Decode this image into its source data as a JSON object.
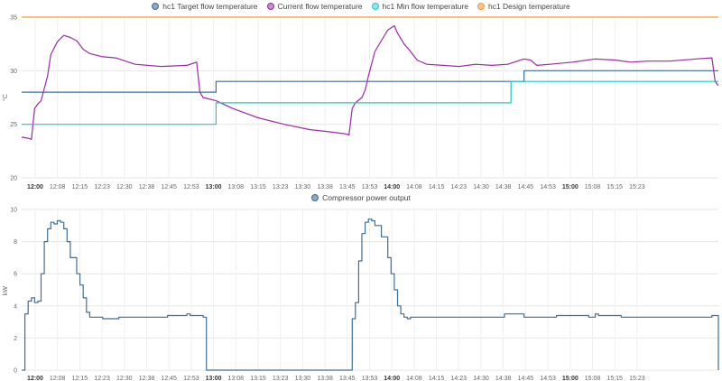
{
  "charts": [
    {
      "legend": [
        {
          "label": "hc1 Target flow temperature",
          "color": "#3f6e96",
          "fill": "#8fa9c4"
        },
        {
          "label": "Current flow temperature",
          "color": "#9a2ba6",
          "fill": "#c98ad0"
        },
        {
          "label": "hc1 Min flow temperature",
          "color": "#1fc9c9",
          "fill": "#8fe4e4"
        },
        {
          "label": "hc1 Design temperature",
          "color": "#f39c34",
          "fill": "#f7c690"
        }
      ],
      "unit": "°C",
      "y_ticks": [
        "20",
        "25",
        "30",
        "35"
      ],
      "x_ticks": [
        {
          "label": "12:00",
          "major": true
        },
        {
          "label": "12:08"
        },
        {
          "label": "12:15"
        },
        {
          "label": "12:23"
        },
        {
          "label": "12:30"
        },
        {
          "label": "12:38"
        },
        {
          "label": "12:45"
        },
        {
          "label": "12:53"
        },
        {
          "label": "13:00",
          "major": true
        },
        {
          "label": "13:08"
        },
        {
          "label": "13:15"
        },
        {
          "label": "13:23"
        },
        {
          "label": "13:30"
        },
        {
          "label": "13:38"
        },
        {
          "label": "13:45"
        },
        {
          "label": "13:53"
        },
        {
          "label": "14:00",
          "major": true
        },
        {
          "label": "14:08"
        },
        {
          "label": "14:15"
        },
        {
          "label": "14:23"
        },
        {
          "label": "14:30"
        },
        {
          "label": "14:38"
        },
        {
          "label": "14:45"
        },
        {
          "label": "14:53"
        },
        {
          "label": "15:00",
          "major": true
        },
        {
          "label": "15:08"
        },
        {
          "label": "15:15"
        },
        {
          "label": "15:23"
        }
      ]
    },
    {
      "legend": [
        {
          "label": "Compressor power output",
          "color": "#3f6e96",
          "fill": "#8fa9c4"
        }
      ],
      "unit": "kW",
      "y_ticks": [
        "0",
        "2",
        "4",
        "6",
        "8",
        "10"
      ],
      "x_ticks": [
        {
          "label": "12:00",
          "major": true
        },
        {
          "label": "12:08"
        },
        {
          "label": "12:15"
        },
        {
          "label": "12:23"
        },
        {
          "label": "12:30"
        },
        {
          "label": "12:38"
        },
        {
          "label": "12:45"
        },
        {
          "label": "12:53"
        },
        {
          "label": "13:00",
          "major": true
        },
        {
          "label": "13:08"
        },
        {
          "label": "13:15"
        },
        {
          "label": "13:23"
        },
        {
          "label": "13:30"
        },
        {
          "label": "13:38"
        },
        {
          "label": "13:45"
        },
        {
          "label": "13:53"
        },
        {
          "label": "14:00",
          "major": true
        },
        {
          "label": "14:08"
        },
        {
          "label": "14:15"
        },
        {
          "label": "14:23"
        },
        {
          "label": "14:30"
        },
        {
          "label": "14:38"
        },
        {
          "label": "14:45"
        },
        {
          "label": "14:53"
        },
        {
          "label": "15:00",
          "major": true
        },
        {
          "label": "15:08"
        },
        {
          "label": "15:15"
        },
        {
          "label": "15:23"
        }
      ]
    }
  ],
  "chart_data": [
    {
      "type": "line",
      "ylabel": "°C",
      "ylim": [
        20,
        35
      ],
      "xlim": [
        "11:55",
        "15:30"
      ],
      "grid": true,
      "legend_position": "top",
      "series": [
        {
          "name": "hc1 Target flow temperature",
          "step": true,
          "x": [
            "11:55",
            "12:55",
            "13:55",
            "14:30",
            "15:30"
          ],
          "values": [
            28,
            29,
            29,
            30,
            30
          ]
        },
        {
          "name": "Current flow temperature",
          "x": [
            "11:55",
            "11:57",
            "11:58",
            "11:59",
            "12:00",
            "12:01",
            "12:03",
            "12:04",
            "12:06",
            "12:08",
            "12:10",
            "12:12",
            "12:14",
            "12:16",
            "12:20",
            "12:24",
            "12:30",
            "12:38",
            "12:46",
            "12:48",
            "12:49",
            "12:50",
            "12:51",
            "12:55",
            "13:00",
            "13:08",
            "13:16",
            "13:24",
            "13:30",
            "13:35",
            "13:36",
            "13:37",
            "13:38",
            "13:40",
            "13:41",
            "13:42",
            "13:44",
            "13:48",
            "13:50",
            "13:51",
            "13:53",
            "13:55",
            "13:57",
            "14:00",
            "14:05",
            "14:10",
            "14:15",
            "14:20",
            "14:25",
            "14:30",
            "14:32",
            "14:34",
            "14:38",
            "14:45",
            "14:52",
            "14:58",
            "15:03",
            "15:08",
            "15:15",
            "15:23",
            "15:28",
            "15:29",
            "15:30"
          ],
          "values": [
            23.8,
            23.7,
            23.6,
            26.5,
            26.9,
            27.2,
            29.5,
            31.5,
            32.7,
            33.3,
            33.1,
            32.8,
            32.0,
            31.6,
            31.3,
            31.2,
            30.6,
            30.4,
            30.5,
            30.7,
            30.8,
            28.0,
            27.5,
            27.2,
            26.5,
            25.6,
            25.0,
            24.5,
            24.3,
            24.1,
            24.0,
            26.5,
            27.0,
            27.5,
            28.2,
            29.5,
            31.8,
            33.8,
            34.2,
            33.5,
            32.5,
            31.8,
            31.0,
            30.6,
            30.5,
            30.4,
            30.6,
            30.5,
            30.6,
            31.1,
            31.0,
            30.5,
            30.6,
            30.8,
            31.1,
            31.0,
            30.8,
            30.9,
            30.9,
            31.1,
            31.2,
            29.0,
            28.6
          ]
        },
        {
          "name": "hc1 Min flow temperature",
          "step": true,
          "x": [
            "11:55",
            "12:55",
            "14:26",
            "15:30"
          ],
          "values": [
            25,
            27,
            29,
            29
          ]
        },
        {
          "name": "hc1 Design temperature",
          "x": [
            "11:55",
            "15:30"
          ],
          "values": [
            35,
            35
          ]
        }
      ]
    },
    {
      "type": "line",
      "ylabel": "kW",
      "ylim": [
        0,
        10
      ],
      "xlim": [
        "11:55",
        "15:30"
      ],
      "grid": true,
      "legend_position": "top",
      "series": [
        {
          "name": "Compressor power output",
          "step": true,
          "x": [
            "11:55",
            "11:56",
            "11:57",
            "11:58",
            "11:59",
            "12:00",
            "12:01",
            "12:02",
            "12:03",
            "12:04",
            "12:05",
            "12:06",
            "12:07",
            "12:08",
            "12:09",
            "12:10",
            "12:12",
            "12:13",
            "12:14",
            "12:15",
            "12:16",
            "12:17",
            "12:18",
            "12:20",
            "12:25",
            "12:30",
            "12:40",
            "12:46",
            "12:47",
            "12:50",
            "12:51",
            "12:52",
            "13:36",
            "13:37",
            "13:38",
            "13:39",
            "13:40",
            "13:41",
            "13:42",
            "13:43",
            "13:44",
            "13:46",
            "13:48",
            "13:49",
            "13:50",
            "13:51",
            "13:52",
            "13:53",
            "13:54",
            "13:55",
            "13:56",
            "14:00",
            "14:10",
            "14:20",
            "14:23",
            "14:24",
            "14:30",
            "14:40",
            "14:50",
            "14:52",
            "14:53",
            "15:00",
            "15:10",
            "15:20",
            "15:28",
            "15:29",
            "15:30"
          ],
          "values": [
            0,
            3.5,
            4.3,
            4.5,
            4.2,
            4.3,
            6.0,
            8.0,
            8.8,
            9.2,
            9.1,
            9.3,
            9.2,
            8.8,
            8.0,
            7.0,
            6.0,
            5.3,
            4.5,
            3.6,
            3.3,
            3.3,
            3.3,
            3.2,
            3.3,
            3.3,
            3.4,
            3.5,
            3.4,
            3.4,
            3.3,
            0,
            0,
            3.2,
            4.2,
            6.8,
            8.5,
            9.2,
            9.4,
            9.3,
            9.0,
            8.3,
            7.0,
            6.0,
            5.0,
            4.0,
            3.5,
            3.3,
            3.2,
            3.3,
            3.3,
            3.3,
            3.3,
            3.3,
            3.3,
            3.5,
            3.3,
            3.4,
            3.3,
            3.5,
            3.4,
            3.3,
            3.3,
            3.3,
            3.4,
            3.4,
            0
          ]
        }
      ]
    }
  ]
}
